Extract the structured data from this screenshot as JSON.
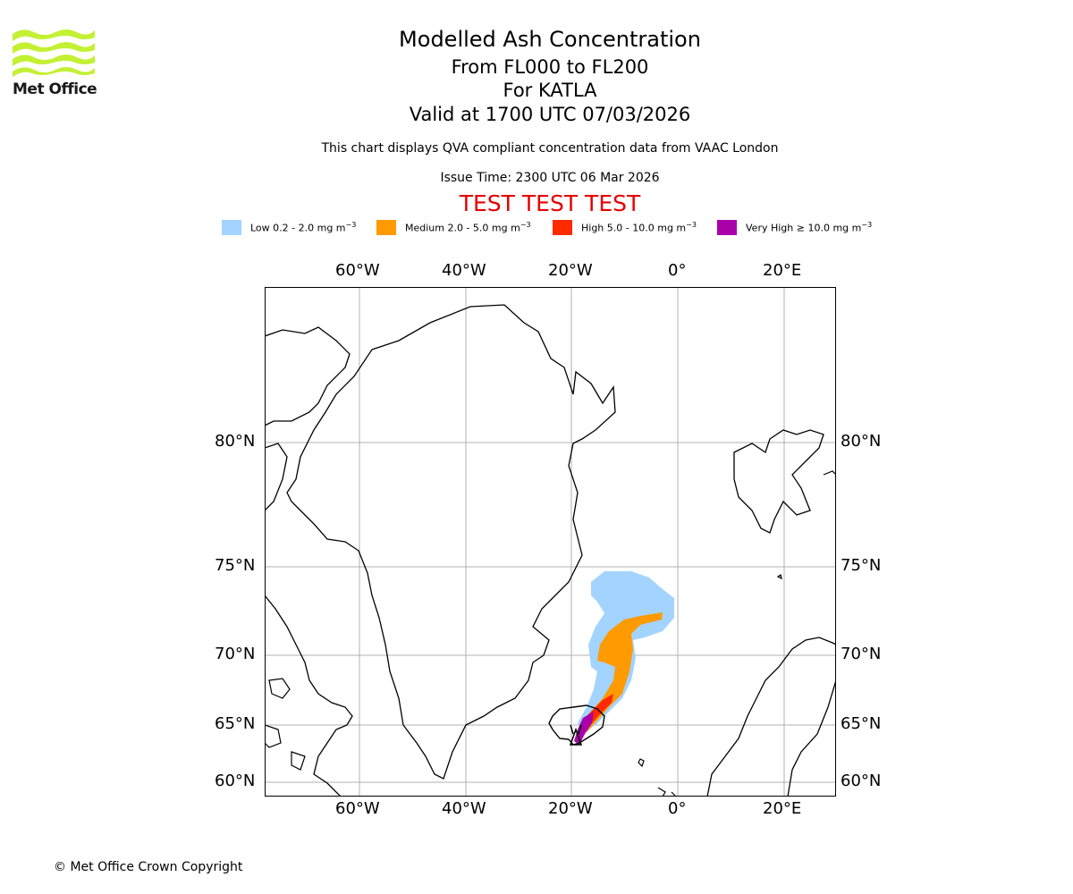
{
  "header": {
    "title": "Modelled Ash Concentration",
    "line1": "From FL000 to FL200",
    "line2": "For KATLA",
    "line3": "Valid at 1700 UTC 07/03/2026",
    "description": "This chart displays QVA compliant concentration data from VAAC London",
    "issue_time": "Issue Time: 2300 UTC 06 Mar 2026",
    "test_banner": "TEST TEST TEST"
  },
  "logo": {
    "text": "Met Office"
  },
  "legend": [
    {
      "label": "Low 0.2 - 2.0 mg m",
      "color": "#a3d3ff"
    },
    {
      "label": "Medium 2.0 - 5.0 mg m",
      "color": "#ff9a00"
    },
    {
      "label": "High 5.0 - 10.0 mg m",
      "color": "#ff2a00"
    },
    {
      "label": "Very High ≥ 10.0 mg m",
      "color": "#aa00aa"
    }
  ],
  "legend_unit_exp": "−3",
  "map": {
    "lon_labels": [
      "60°W",
      "40°W",
      "20°W",
      "0°",
      "20°E"
    ],
    "lat_labels": [
      "80°N",
      "75°N",
      "70°N",
      "65°N",
      "60°N"
    ],
    "volcano": "KATLA"
  },
  "footer": {
    "copyright": "© Met Office Crown Copyright"
  }
}
